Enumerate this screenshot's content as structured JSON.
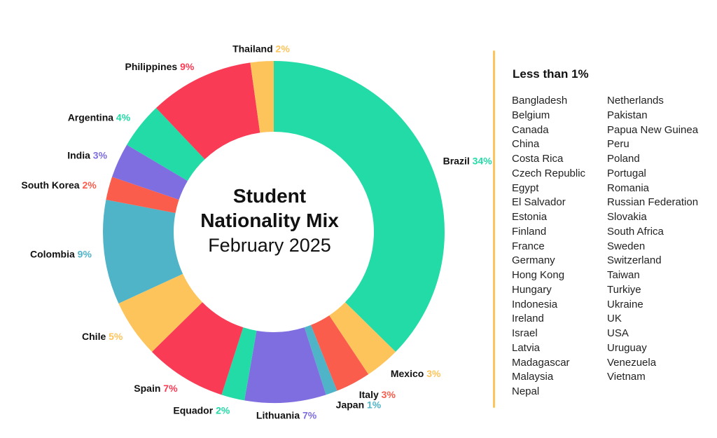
{
  "chart_data": {
    "type": "donut",
    "title": "Student Nationality Mix",
    "subtitle": "February 2025",
    "series": [
      {
        "name": "Brazil",
        "value": 34,
        "label": "34%",
        "color": "#22dba6"
      },
      {
        "name": "Mexico",
        "value": 3,
        "label": "3%",
        "color": "#fec45c"
      },
      {
        "name": "Italy",
        "value": 3,
        "label": "3%",
        "color": "#fa5d4b"
      },
      {
        "name": "Japan",
        "value": 1,
        "label": "1%",
        "color": "#4fb4c8"
      },
      {
        "name": "Lithuania",
        "value": 7,
        "label": "7%",
        "color": "#7e6ee0"
      },
      {
        "name": "Equador",
        "value": 2,
        "label": "2%",
        "color": "#22dba6"
      },
      {
        "name": "Spain",
        "value": 7,
        "label": "7%",
        "color": "#f93b55"
      },
      {
        "name": "Chile",
        "value": 5,
        "label": "5%",
        "color": "#fec45c"
      },
      {
        "name": "Colombia",
        "value": 9,
        "label": "9%",
        "color": "#4fb4c8"
      },
      {
        "name": "South Korea",
        "value": 2,
        "label": "2%",
        "color": "#fa5d4b"
      },
      {
        "name": "India",
        "value": 3,
        "label": "3%",
        "color": "#7e6ee0"
      },
      {
        "name": "Argentina",
        "value": 4,
        "label": "4%",
        "color": "#22dba6"
      },
      {
        "name": "Philippines",
        "value": 9,
        "label": "9%",
        "color": "#f93b55"
      },
      {
        "name": "Thailand",
        "value": 2,
        "label": "2%",
        "color": "#fec45c"
      }
    ]
  },
  "others": {
    "title": "Less than 1%",
    "left": [
      "Bangladesh",
      "Belgium",
      "Canada",
      "China",
      "Costa Rica",
      "Czech Republic",
      "Egypt",
      "El Salvador",
      "Estonia",
      "Finland",
      "France",
      "Germany",
      "Hong Kong",
      "Hungary",
      "Indonesia",
      "Ireland",
      "Israel",
      "Latvia",
      "Madagascar",
      "Malaysia",
      "Nepal"
    ],
    "right": [
      "Netherlands",
      "Pakistan",
      "Papua New Guinea",
      "Peru",
      "Poland",
      "Portugal",
      "Romania",
      "Russian Federation",
      "Slovakia",
      "South Africa",
      "Sweden",
      "Switzerland",
      "Taiwan",
      "Turkiye",
      "Ukraine",
      "UK",
      "USA",
      "Uruguay",
      "Venezuela",
      "Vietnam"
    ]
  },
  "colors": {
    "divider": "#fcc45a"
  }
}
